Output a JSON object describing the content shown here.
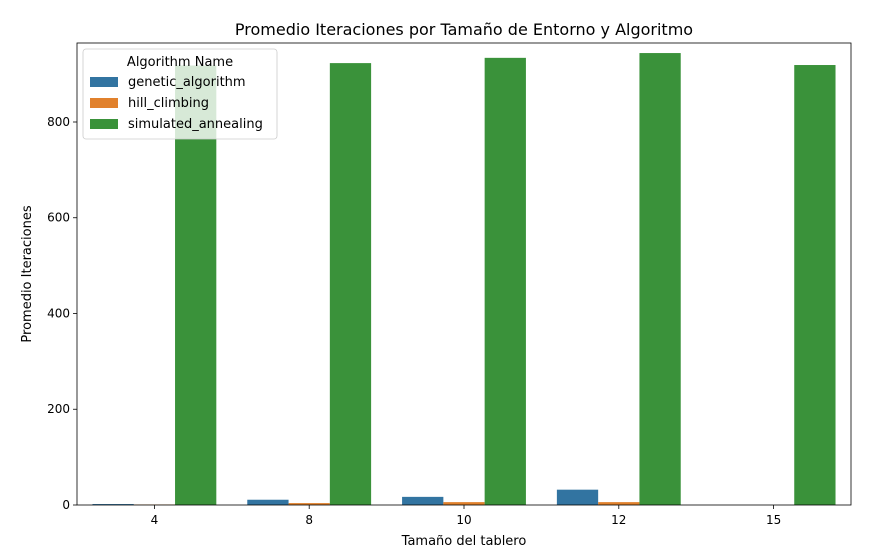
{
  "chart_data": {
    "type": "bar",
    "title": "Promedio Iteraciones por Tamaño de Entorno y Algoritmo",
    "xlabel": "Tamaño del tablero",
    "ylabel": "Promedio Iteraciones",
    "categories": [
      "4",
      "8",
      "10",
      "12",
      "15"
    ],
    "ylim": [
      0,
      965
    ],
    "yticks": [
      0,
      200,
      400,
      600,
      800
    ],
    "grid": false,
    "legend": {
      "title": "Algorithm Name",
      "placement": "top-left"
    },
    "series": [
      {
        "name": "genetic_algorithm",
        "color": "#3274a1",
        "values": [
          2,
          11,
          17,
          32,
          null
        ]
      },
      {
        "name": "hill_climbing",
        "color": "#e1812c",
        "values": [
          1,
          4,
          6,
          6,
          null
        ]
      },
      {
        "name": "simulated_annealing",
        "color": "#3a923a",
        "values": [
          918,
          923,
          934,
          944,
          919
        ]
      }
    ]
  }
}
